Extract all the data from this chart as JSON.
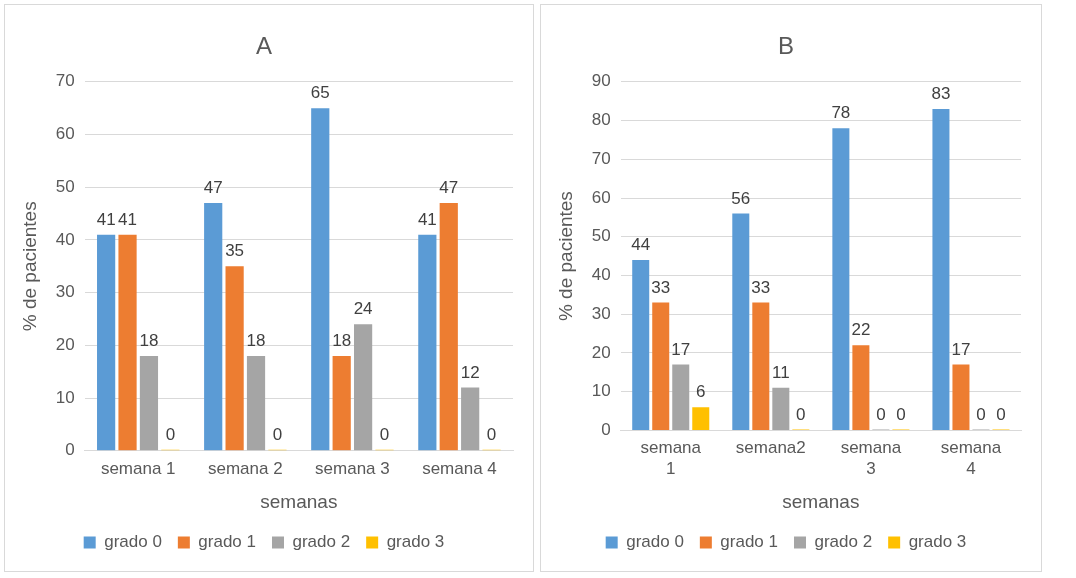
{
  "chart_data": [
    {
      "type": "bar",
      "title": "A",
      "xlabel": "semanas",
      "ylabel": "% de pacientes",
      "categories": [
        "semana 1",
        "semana 2",
        "semana 3",
        "semana 4"
      ],
      "ylim": [
        0,
        70
      ],
      "yticks": [
        0,
        10,
        20,
        30,
        40,
        50,
        60,
        70
      ],
      "grid": "y",
      "legend": "bottom",
      "data_labels": true,
      "series": [
        {
          "name": "grado 0",
          "color": "#5b9bd5",
          "values": [
            41,
            47,
            65,
            41
          ]
        },
        {
          "name": "grado 1",
          "color": "#ed7d31",
          "values": [
            41,
            35,
            18,
            47
          ]
        },
        {
          "name": "grado 2",
          "color": "#a5a5a5",
          "values": [
            18,
            18,
            24,
            12
          ]
        },
        {
          "name": "grado 3",
          "color": "#ffc000",
          "values": [
            0,
            0,
            0,
            0
          ]
        }
      ]
    },
    {
      "type": "bar",
      "title": "B",
      "xlabel": "semanas",
      "ylabel": "% de pacientes",
      "categories": [
        "semana 1",
        "semana2",
        "semana 3",
        "semana 4"
      ],
      "ylim": [
        0,
        90
      ],
      "yticks": [
        0,
        10,
        20,
        30,
        40,
        50,
        60,
        70,
        80,
        90
      ],
      "grid": "y",
      "legend": "bottom",
      "data_labels": true,
      "series": [
        {
          "name": "grado 0",
          "color": "#5b9bd5",
          "values": [
            44,
            56,
            78,
            83
          ]
        },
        {
          "name": "grado 1",
          "color": "#ed7d31",
          "values": [
            33,
            33,
            22,
            17
          ]
        },
        {
          "name": "grado 2",
          "color": "#a5a5a5",
          "values": [
            17,
            11,
            0,
            0
          ]
        },
        {
          "name": "grado 3",
          "color": "#ffc000",
          "values": [
            6,
            0,
            0,
            0
          ]
        }
      ]
    }
  ]
}
